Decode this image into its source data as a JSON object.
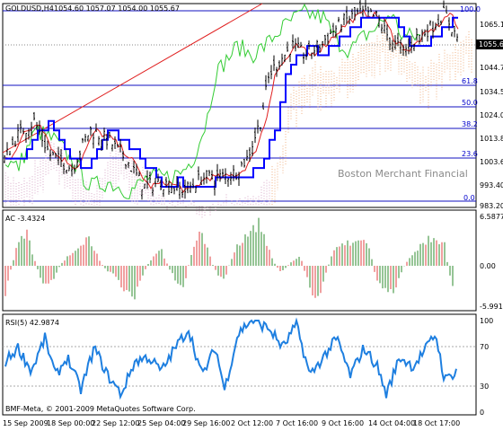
{
  "main_panel": {
    "symbol_label": "GOLDUSD,H4",
    "ohlc": "1054.60 1057.07 1054.00 1055.67",
    "watermark": "Boston Merchant Financial",
    "current_price": "1055.67",
    "price_axis": [
      "1065.10",
      "1055.67",
      "1044.70",
      "1034.50",
      "1024.00",
      "1013.80",
      "1003.60",
      "993.40",
      "983.20"
    ],
    "fib_levels": [
      "100.0",
      "61.8",
      "50.0",
      "38.2",
      "23.6",
      "0.0"
    ]
  },
  "ac_panel": {
    "label": "AC -3.4324",
    "axis": [
      "6.5877",
      "0.00",
      "-5.9914"
    ]
  },
  "rsi_panel": {
    "label": "RSI(5) 42.9874",
    "axis": [
      "100",
      "70",
      "30",
      "0"
    ]
  },
  "footer": {
    "copyright": "BMF-Meta, © 2001-2009 MetaQuotes Software Corp.",
    "time_labels": [
      "15 Sep 2009",
      "18 Sep 00:00",
      "22 Sep 12:00",
      "25 Sep 04:00",
      "29 Sep 16:00",
      "2 Oct 12:00",
      "7 Oct 16:00",
      "9 Oct 16:00",
      "14 Oct 04:00",
      "18 Oct 17:00"
    ]
  },
  "colors": {
    "bull_bar": "#2e8b2e",
    "bear_bar": "#e04040",
    "rsi_line": "#1e7fe0",
    "kijun": "#0000ff",
    "chikou": "#33cc33",
    "tenkan": "#e02020",
    "fib": "#1010c0"
  },
  "chart_data": {
    "type": "line",
    "symbol": "GOLDUSD",
    "timeframe": "H4",
    "x": [
      "15 Sep 2009",
      "18 Sep 00:00",
      "22 Sep 12:00",
      "25 Sep 04:00",
      "29 Sep 16:00",
      "2 Oct 12:00",
      "7 Oct 16:00",
      "9 Oct 16:00",
      "14 Oct 04:00",
      "18 Oct 17:00"
    ],
    "close": [
      1004,
      1014,
      1011,
      996,
      1001,
      1007,
      1045,
      1052,
      1050,
      1056
    ],
    "ylim": [
      983.2,
      1070
    ],
    "ac_range": [
      -5.9914,
      6.5877
    ],
    "rsi_levels": [
      30,
      70
    ],
    "grid": false
  }
}
